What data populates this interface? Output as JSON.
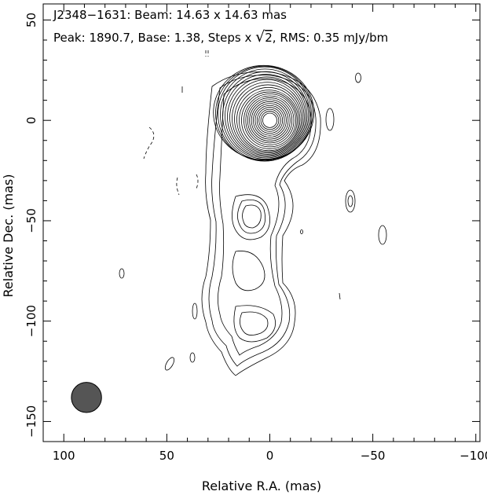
{
  "header": {
    "line1": "J2348−1631: Beam: 14.63 x 14.63 mas",
    "line2_pre": "Peak: 1890.7, Base: 1.38, Steps x ",
    "line2_sqrt": "√",
    "line2_two": "2",
    "line2_post": ", RMS: 0.35 mJy/bm"
  },
  "axes": {
    "xlabel": "Relative R.A. (mas)",
    "ylabel": "Relative Dec. (mas)",
    "xlim": [
      110,
      -102
    ],
    "ylim": [
      -160,
      58
    ],
    "x_ticks": [
      100,
      50,
      0,
      -50,
      -100
    ],
    "x_tick_labels": [
      "100",
      "50",
      "0",
      "−50",
      "−100"
    ],
    "y_ticks": [
      50,
      0,
      -50,
      -100,
      -150
    ],
    "y_tick_labels": [
      "50",
      "0",
      "−50",
      "−100",
      "−150"
    ]
  },
  "chart_data": {
    "type": "contour",
    "peak_position": [
      0,
      0
    ],
    "jet_direction": "south",
    "beam": {
      "x": 89,
      "y": -138,
      "diameter": 14.63,
      "color": "#555555"
    }
  }
}
